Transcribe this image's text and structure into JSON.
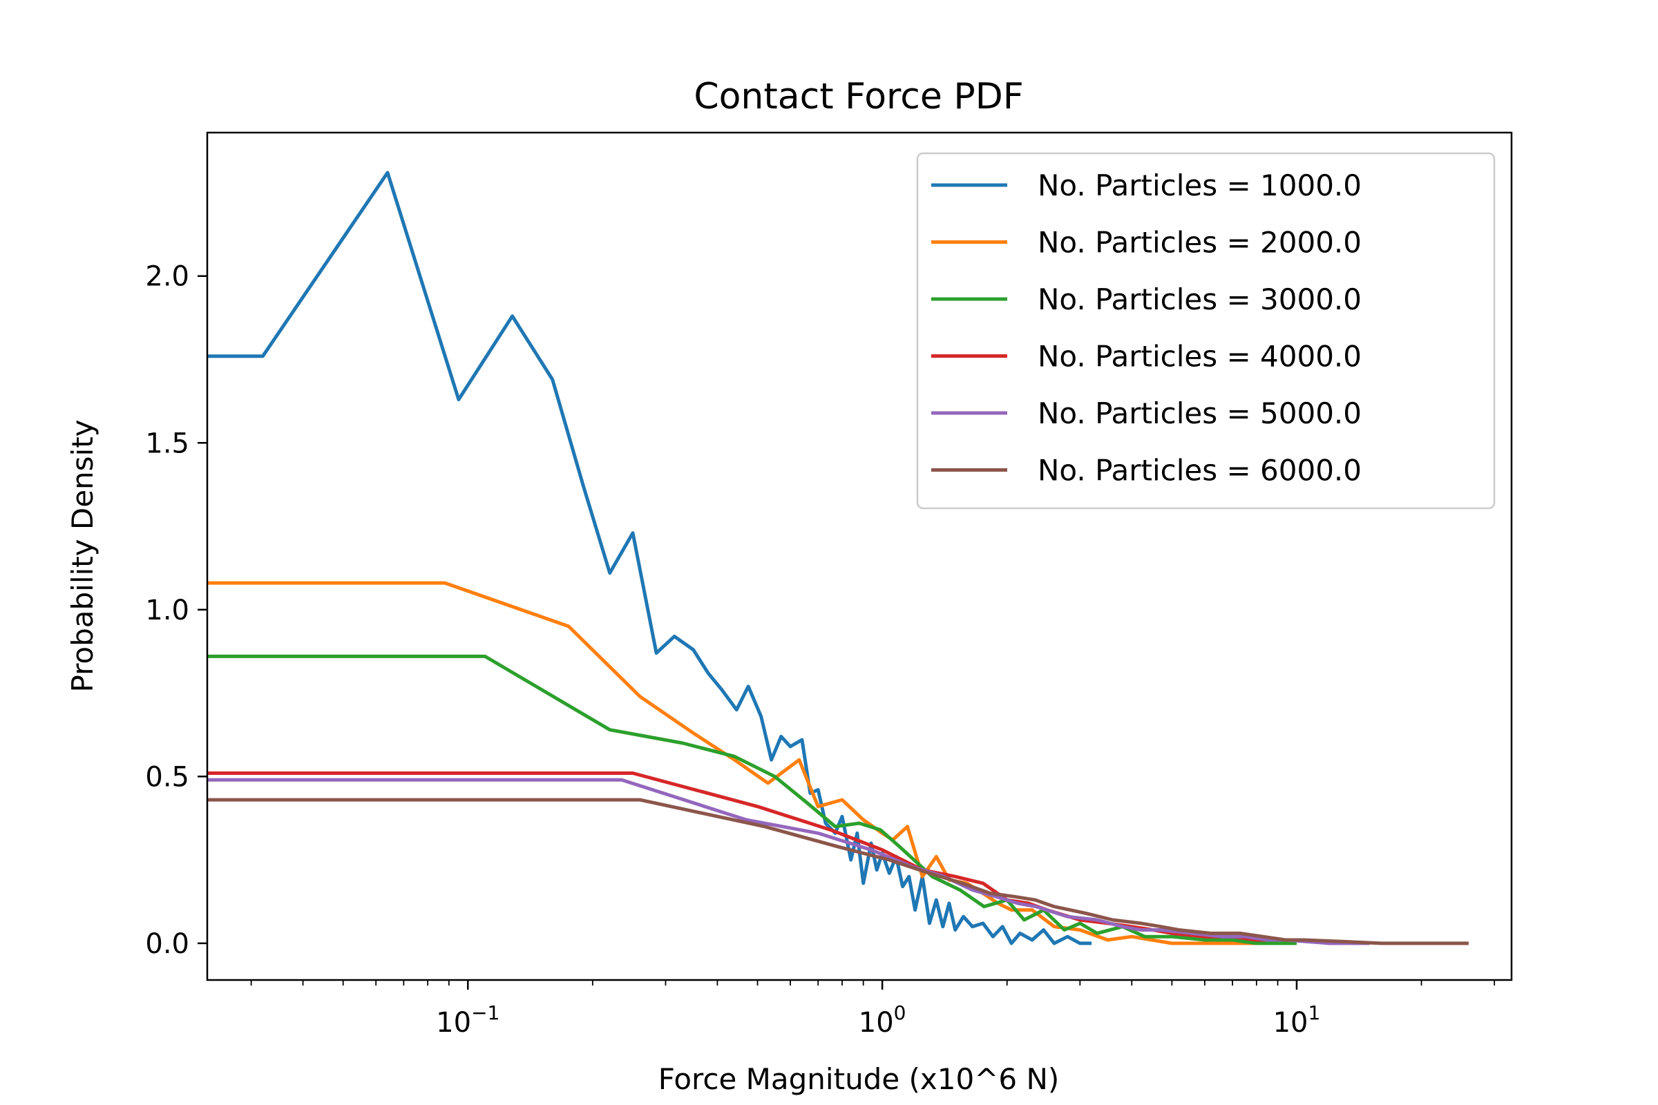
{
  "chart_data": {
    "type": "line",
    "title": "Contact Force PDF",
    "xlabel": "Force Magnitude (x10^6 N)",
    "ylabel": "Probability Density",
    "xscale": "log",
    "xlim": [
      0.0235,
      33
    ],
    "ylim": [
      -0.11,
      2.43
    ],
    "xticks": [
      {
        "value": 0.1,
        "base": "10",
        "exp": "−1"
      },
      {
        "value": 1,
        "base": "10",
        "exp": "0"
      },
      {
        "value": 10,
        "base": "10",
        "exp": "1"
      }
    ],
    "yticks": [
      {
        "value": 0.0,
        "label": "0.0"
      },
      {
        "value": 0.5,
        "label": "0.5"
      },
      {
        "value": 1.0,
        "label": "1.0"
      },
      {
        "value": 1.5,
        "label": "1.5"
      },
      {
        "value": 2.0,
        "label": "2.0"
      }
    ],
    "grid": false,
    "legend_position": "top-right",
    "series": [
      {
        "name": "No. Particles = 1000.0",
        "color": "#1f77b4",
        "x": [
          0.0235,
          0.032,
          0.064,
          0.095,
          0.128,
          0.16,
          0.19,
          0.22,
          0.25,
          0.285,
          0.315,
          0.35,
          0.38,
          0.41,
          0.445,
          0.475,
          0.51,
          0.54,
          0.57,
          0.6,
          0.64,
          0.67,
          0.7,
          0.73,
          0.77,
          0.8,
          0.84,
          0.87,
          0.9,
          0.94,
          0.97,
          1.0,
          1.04,
          1.08,
          1.12,
          1.16,
          1.2,
          1.25,
          1.3,
          1.35,
          1.4,
          1.45,
          1.5,
          1.57,
          1.65,
          1.75,
          1.85,
          1.95,
          2.05,
          2.15,
          2.3,
          2.45,
          2.6,
          2.8,
          3.0,
          3.2
        ],
        "y": [
          1.76,
          1.76,
          2.31,
          1.63,
          1.88,
          1.69,
          1.37,
          1.11,
          1.23,
          0.87,
          0.92,
          0.88,
          0.81,
          0.76,
          0.7,
          0.77,
          0.68,
          0.55,
          0.62,
          0.59,
          0.61,
          0.45,
          0.46,
          0.36,
          0.33,
          0.38,
          0.25,
          0.33,
          0.18,
          0.3,
          0.22,
          0.27,
          0.21,
          0.26,
          0.17,
          0.2,
          0.1,
          0.2,
          0.06,
          0.13,
          0.05,
          0.12,
          0.04,
          0.08,
          0.05,
          0.06,
          0.02,
          0.05,
          0.0,
          0.03,
          0.01,
          0.04,
          0.0,
          0.02,
          0.0,
          0.0
        ]
      },
      {
        "name": "No. Particles = 2000.0",
        "color": "#ff7f0e",
        "x": [
          0.0235,
          0.088,
          0.175,
          0.26,
          0.35,
          0.44,
          0.53,
          0.63,
          0.7,
          0.8,
          0.9,
          1.0,
          1.06,
          1.15,
          1.25,
          1.35,
          1.45,
          1.6,
          1.75,
          1.9,
          2.05,
          2.3,
          2.6,
          3.0,
          3.5,
          4.0,
          5.0,
          6.0,
          7.0,
          8.0
        ],
        "y": [
          1.08,
          1.08,
          0.95,
          0.74,
          0.63,
          0.55,
          0.48,
          0.55,
          0.41,
          0.43,
          0.37,
          0.33,
          0.31,
          0.35,
          0.2,
          0.26,
          0.19,
          0.18,
          0.15,
          0.12,
          0.1,
          0.1,
          0.05,
          0.04,
          0.01,
          0.02,
          0.0,
          0.0,
          0.0,
          0.0
        ]
      },
      {
        "name": "No. Particles = 3000.0",
        "color": "#2ca02c",
        "x": [
          0.0235,
          0.11,
          0.22,
          0.33,
          0.44,
          0.55,
          0.66,
          0.77,
          0.88,
          0.99,
          1.1,
          1.32,
          1.54,
          1.76,
          2.0,
          2.2,
          2.45,
          2.75,
          3.0,
          3.3,
          3.8,
          4.3,
          5.0,
          6.0,
          7.0,
          8.0,
          9.0,
          10.0
        ],
        "y": [
          0.86,
          0.86,
          0.64,
          0.6,
          0.56,
          0.5,
          0.42,
          0.35,
          0.36,
          0.34,
          0.29,
          0.2,
          0.16,
          0.11,
          0.13,
          0.07,
          0.1,
          0.04,
          0.06,
          0.03,
          0.05,
          0.02,
          0.02,
          0.01,
          0.01,
          0.0,
          0.0,
          0.0
        ]
      },
      {
        "name": "No. Particles = 4000.0",
        "color": "#d62728",
        "x": [
          0.0235,
          0.25,
          0.5,
          0.75,
          1.0,
          1.25,
          1.5,
          1.75,
          2.0,
          2.25,
          2.5,
          3.0,
          3.5,
          4.0,
          4.5,
          5.0,
          6.0,
          7.0,
          8.0,
          9.0,
          10.0,
          12.0
        ],
        "y": [
          0.51,
          0.51,
          0.41,
          0.34,
          0.28,
          0.22,
          0.2,
          0.18,
          0.13,
          0.12,
          0.1,
          0.07,
          0.06,
          0.05,
          0.04,
          0.03,
          0.02,
          0.02,
          0.01,
          0.01,
          0.01,
          0.0
        ]
      },
      {
        "name": "No. Particles = 5000.0",
        "color": "#9467bd",
        "x": [
          0.0235,
          0.235,
          0.47,
          0.7,
          0.94,
          1.18,
          1.41,
          1.65,
          1.88,
          2.12,
          2.35,
          2.8,
          3.3,
          3.8,
          4.2,
          4.7,
          5.6,
          6.6,
          7.5,
          8.5,
          9.4,
          12.0,
          15.0
        ],
        "y": [
          0.49,
          0.49,
          0.37,
          0.33,
          0.28,
          0.23,
          0.2,
          0.16,
          0.14,
          0.12,
          0.11,
          0.08,
          0.07,
          0.05,
          0.04,
          0.04,
          0.03,
          0.02,
          0.02,
          0.01,
          0.01,
          0.0,
          0.0
        ]
      },
      {
        "name": "No. Particles = 6000.0",
        "color": "#8c564b",
        "x": [
          0.0235,
          0.26,
          0.52,
          0.78,
          1.04,
          1.3,
          1.56,
          1.82,
          2.08,
          2.34,
          2.6,
          3.1,
          3.6,
          4.2,
          4.7,
          5.2,
          6.2,
          7.3,
          8.3,
          9.4,
          10.4,
          13.0,
          16.0,
          20.0,
          26.0
        ],
        "y": [
          0.43,
          0.43,
          0.35,
          0.29,
          0.25,
          0.21,
          0.18,
          0.15,
          0.14,
          0.13,
          0.11,
          0.09,
          0.07,
          0.06,
          0.05,
          0.04,
          0.03,
          0.03,
          0.02,
          0.01,
          0.01,
          0.005,
          0.0,
          0.0,
          0.0
        ]
      }
    ]
  }
}
